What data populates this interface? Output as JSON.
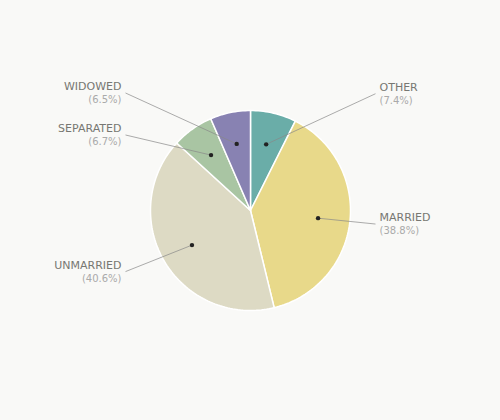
{
  "chart_data": {
    "type": "pie",
    "categories": [
      "OTHER",
      "MARRIED",
      "UNMARRIED",
      "SEPARATED",
      "WIDOWED"
    ],
    "values": [
      7.4,
      38.8,
      40.6,
      6.7,
      6.5
    ],
    "value_labels": [
      "(7.4%)",
      "(38.8%)",
      "(40.6%)",
      "(6.7%)",
      "(6.5%)"
    ],
    "colors": [
      "#6aada8",
      "#e8d98a",
      "#dddac4",
      "#a9c5a3",
      "#8882b2"
    ],
    "data_labels": true
  }
}
